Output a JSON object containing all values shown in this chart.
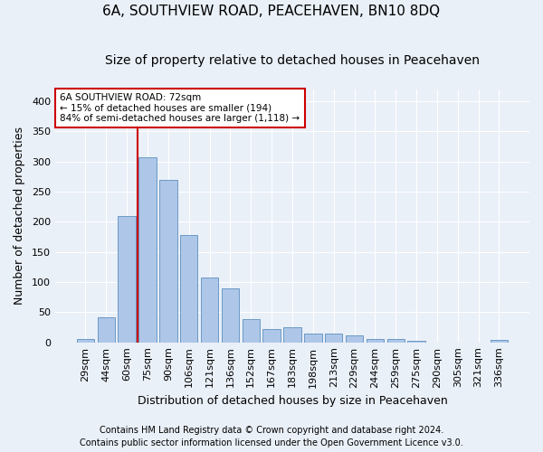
{
  "title": "6A, SOUTHVIEW ROAD, PEACEHAVEN, BN10 8DQ",
  "subtitle": "Size of property relative to detached houses in Peacehaven",
  "xlabel": "Distribution of detached houses by size in Peacehaven",
  "ylabel": "Number of detached properties",
  "categories": [
    "29sqm",
    "44sqm",
    "60sqm",
    "75sqm",
    "90sqm",
    "106sqm",
    "121sqm",
    "136sqm",
    "152sqm",
    "167sqm",
    "183sqm",
    "198sqm",
    "213sqm",
    "229sqm",
    "244sqm",
    "259sqm",
    "275sqm",
    "290sqm",
    "305sqm",
    "321sqm",
    "336sqm"
  ],
  "values": [
    5,
    42,
    210,
    307,
    270,
    178,
    107,
    90,
    39,
    22,
    25,
    15,
    14,
    11,
    6,
    6,
    3,
    0,
    0,
    0,
    4
  ],
  "bar_color": "#aec6e8",
  "bar_edge_color": "#5a8fc0",
  "bg_color": "#eaf0f8",
  "grid_color": "#ffffff",
  "vline_x_index": 3,
  "vline_color": "#cc0000",
  "annotation_line1": "6A SOUTHVIEW ROAD: 72sqm",
  "annotation_line2": "← 15% of detached houses are smaller (194)",
  "annotation_line3": "84% of semi-detached houses are larger (1,118) →",
  "annotation_box_color": "#ffffff",
  "annotation_box_edge": "#cc0000",
  "footer1": "Contains HM Land Registry data © Crown copyright and database right 2024.",
  "footer2": "Contains public sector information licensed under the Open Government Licence v3.0.",
  "ylim": [
    0,
    420
  ],
  "yticks": [
    0,
    50,
    100,
    150,
    200,
    250,
    300,
    350,
    400
  ],
  "title_fontsize": 11,
  "subtitle_fontsize": 10,
  "axis_fontsize": 9,
  "tick_fontsize": 8,
  "footer_fontsize": 7
}
